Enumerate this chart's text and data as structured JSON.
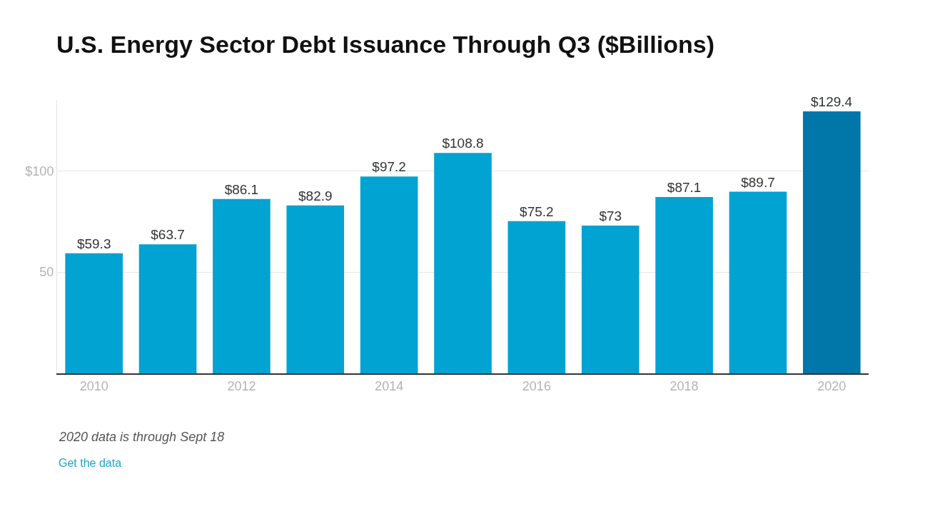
{
  "chart_data": {
    "type": "bar",
    "title": "U.S. Energy Sector Debt Issuance Through Q3 ($Billions)",
    "categories": [
      "2010",
      null,
      "2012",
      null,
      "2014",
      null,
      "2016",
      null,
      "2018",
      null,
      "2020"
    ],
    "values": [
      59.3,
      63.7,
      86.1,
      82.9,
      97.2,
      108.8,
      75.2,
      73,
      87.1,
      89.7,
      129.4
    ],
    "value_labels": [
      "$59.3",
      "$63.7",
      "$86.1",
      "$82.9",
      "$97.2",
      "$108.8",
      "$75.2",
      "$73",
      "$87.1",
      "$89.7",
      "$129.4"
    ],
    "colors": [
      "#00a3d1",
      "#00a3d1",
      "#00a3d1",
      "#00a3d1",
      "#00a3d1",
      "#00a3d1",
      "#00a3d1",
      "#00a3d1",
      "#00a3d1",
      "#00a3d1",
      "#0077a8"
    ],
    "ylim": [
      0,
      135
    ],
    "yticks": [
      {
        "value": 50,
        "label": "50"
      },
      {
        "value": 100,
        "label": "$100"
      }
    ],
    "grid": "y",
    "legend": false,
    "annotations": [
      "2020 data is through Sept 18",
      "Get the data"
    ]
  }
}
